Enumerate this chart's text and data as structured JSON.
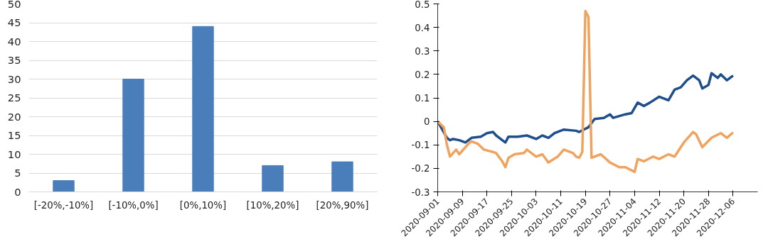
{
  "chart_data": [
    {
      "type": "bar",
      "categories": [
        "[-20%,-10%]",
        "[-10%,0%]",
        "[0%,10%]",
        "[10%,20%]",
        "[20%,90%]"
      ],
      "values": [
        3,
        30,
        44,
        7,
        8
      ],
      "color": "#4a7ebb",
      "ylim": [
        0,
        50
      ],
      "yticks": [
        0,
        5,
        10,
        15,
        20,
        25,
        30,
        35,
        40,
        45,
        50
      ],
      "grid": "y"
    },
    {
      "type": "line",
      "xlim": [
        "2020-09-01",
        "2020-12-14"
      ],
      "xticks": [
        "2020-09-01",
        "2020-09-09",
        "2020-09-17",
        "2020-09-25",
        "2020-10-03",
        "2020-10-11",
        "2020-10-19",
        "2020-10-27",
        "2020-11-04",
        "2020-11-12",
        "2020-11-20",
        "2020-11-28",
        "2020-12-06"
      ],
      "ylim": [
        -0.3,
        0.5
      ],
      "yticks": [
        -0.3,
        -0.2,
        -0.1,
        0,
        0.1,
        0.2,
        0.3,
        0.4,
        0.5
      ],
      "grid": false,
      "line_style": "solid",
      "series": [
        {
          "color": "#1f4e8c",
          "x": [
            "2020-09-01",
            "2020-09-04",
            "2020-09-05",
            "2020-09-06",
            "2020-09-08",
            "2020-09-10",
            "2020-09-12",
            "2020-09-15",
            "2020-09-17",
            "2020-09-19",
            "2020-09-20",
            "2020-09-22",
            "2020-09-23",
            "2020-09-24",
            "2020-09-27",
            "2020-09-30",
            "2020-10-03",
            "2020-10-05",
            "2020-10-07",
            "2020-10-09",
            "2020-10-12",
            "2020-10-16",
            "2020-10-17",
            "2020-10-20",
            "2020-10-22",
            "2020-10-25",
            "2020-10-27",
            "2020-10-28",
            "2020-11-01",
            "2020-11-03",
            "2020-11-05",
            "2020-11-07",
            "2020-11-09",
            "2020-11-12",
            "2020-11-15",
            "2020-11-17",
            "2020-11-19",
            "2020-11-21",
            "2020-11-23",
            "2020-11-25",
            "2020-11-26",
            "2020-11-28",
            "2020-11-29",
            "2020-12-01",
            "2020-12-02",
            "2020-12-04",
            "2020-12-06"
          ],
          "values": [
            0,
            -0.07,
            -0.08,
            -0.075,
            -0.08,
            -0.09,
            -0.07,
            -0.065,
            -0.05,
            -0.045,
            -0.06,
            -0.08,
            -0.09,
            -0.065,
            -0.065,
            -0.06,
            -0.075,
            -0.06,
            -0.07,
            -0.05,
            -0.035,
            -0.04,
            -0.045,
            -0.025,
            0.01,
            0.015,
            0.03,
            0.015,
            0.03,
            0.035,
            0.08,
            0.065,
            0.08,
            0.105,
            0.09,
            0.135,
            0.145,
            0.175,
            0.195,
            0.175,
            0.14,
            0.155,
            0.205,
            0.185,
            0.2,
            0.175,
            0.195
          ]
        },
        {
          "color": "#f0a35e",
          "x": [
            "2020-09-01",
            "2020-09-03",
            "2020-09-04",
            "2020-09-05",
            "2020-09-07",
            "2020-09-08",
            "2020-09-11",
            "2020-09-12",
            "2020-09-14",
            "2020-09-16",
            "2020-09-19",
            "2020-09-20",
            "2020-09-22",
            "2020-09-23",
            "2020-09-24",
            "2020-09-26",
            "2020-09-29",
            "2020-09-30",
            "2020-10-03",
            "2020-10-05",
            "2020-10-07",
            "2020-10-10",
            "2020-10-12",
            "2020-10-15",
            "2020-10-16",
            "2020-10-17",
            "2020-10-18",
            "2020-10-19",
            "2020-10-20",
            "2020-10-21",
            "2020-10-24",
            "2020-10-27",
            "2020-10-30",
            "2020-11-01",
            "2020-11-04",
            "2020-11-05",
            "2020-11-07",
            "2020-11-10",
            "2020-11-12",
            "2020-11-15",
            "2020-11-17",
            "2020-11-20",
            "2020-11-23",
            "2020-11-24",
            "2020-11-26",
            "2020-11-29",
            "2020-12-02",
            "2020-12-04",
            "2020-12-06"
          ],
          "values": [
            0,
            -0.025,
            -0.1,
            -0.15,
            -0.12,
            -0.14,
            -0.095,
            -0.085,
            -0.095,
            -0.12,
            -0.13,
            -0.135,
            -0.17,
            -0.195,
            -0.155,
            -0.14,
            -0.135,
            -0.12,
            -0.15,
            -0.14,
            -0.175,
            -0.15,
            -0.12,
            -0.135,
            -0.15,
            -0.155,
            -0.13,
            0.47,
            0.445,
            -0.155,
            -0.14,
            -0.175,
            -0.195,
            -0.195,
            -0.215,
            -0.16,
            -0.17,
            -0.15,
            -0.16,
            -0.14,
            -0.15,
            -0.09,
            -0.045,
            -0.055,
            -0.11,
            -0.07,
            -0.05,
            -0.07,
            -0.047
          ]
        }
      ]
    }
  ]
}
